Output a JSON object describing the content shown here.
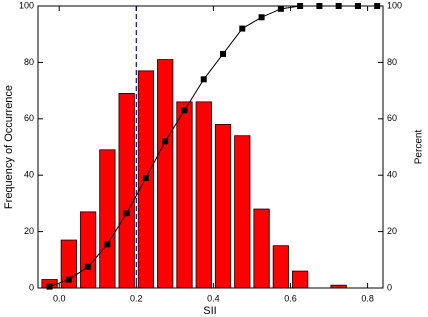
{
  "chart_data": {
    "type": "histogram",
    "xlabel": "SII",
    "ylabel": "Frequency of Occurrence",
    "y2label": "Percent",
    "bins": [
      -0.05,
      0,
      0.05,
      0.1,
      0.15,
      0.2,
      0.25,
      0.3,
      0.35,
      0.4,
      0.45,
      0.5,
      0.55,
      0.6,
      0.65,
      0.7,
      0.75
    ],
    "values": [
      3,
      17,
      27,
      49,
      69,
      77,
      81,
      66,
      66,
      58,
      54,
      28,
      15,
      6,
      0,
      1
    ],
    "color": "#ff0000",
    "overlay": {
      "type": "line",
      "axis": "y2",
      "color": "#000000",
      "x": [
        -0.025,
        0.025,
        0.075,
        0.125,
        0.175,
        0.225,
        0.275,
        0.325,
        0.375,
        0.425,
        0.475,
        0.525,
        0.575,
        0.625,
        0.675,
        0.725,
        0.775,
        0.825
      ],
      "values": [
        0.5,
        3,
        7.5,
        15.5,
        26.5,
        39,
        52,
        63,
        74,
        83,
        92,
        96,
        99,
        100,
        100,
        100,
        100,
        100
      ]
    },
    "reference_line": {
      "x": 0.2,
      "color": "#0000cc"
    },
    "xlim": [
      -0.055,
      0.84
    ],
    "xticks": [
      {
        "value": 0,
        "label": "0.0"
      },
      0.2,
      0.4,
      0.6,
      0.8
    ],
    "ylim": [
      0,
      100
    ],
    "yticks": [
      0,
      20,
      40,
      60,
      80,
      100
    ],
    "y2lim": [
      0,
      100
    ],
    "y2ticks": [
      0,
      20,
      40,
      60,
      80,
      100
    ]
  }
}
